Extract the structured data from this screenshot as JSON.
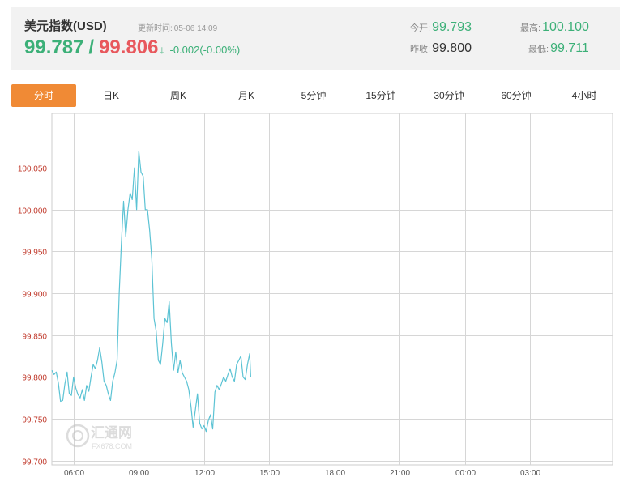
{
  "header": {
    "title": "美元指数(USD)",
    "update_label": "更新时间:",
    "update_time": "05-06 14:09",
    "bid": "99.787",
    "separator": "/",
    "ask": "99.806",
    "arrow": "↓",
    "change": "-0.002(-0.00%)",
    "open_label": "今开:",
    "open_value": "99.793",
    "prev_close_label": "昨收:",
    "prev_close_value": "99.800",
    "high_label": "最高:",
    "high_value": "100.100",
    "low_label": "最低:",
    "low_value": "99.711"
  },
  "tabs": [
    "分时",
    "日K",
    "周K",
    "月K",
    "5分钟",
    "15分钟",
    "30分钟",
    "60分钟",
    "4小时"
  ],
  "active_tab": 0,
  "watermark": {
    "cn": "汇通网",
    "en": "FX678.COM",
    "icon": "huitong-logo-icon"
  },
  "colors": {
    "line": "#5cc3d4",
    "ref_line": "#e07a3a",
    "ytick": "#c0392b",
    "grid": "#d6d6d6",
    "active_tab": "#f08a35",
    "up": "#3cb078",
    "down": "#e8585d"
  },
  "chart_data": {
    "type": "line",
    "title": "",
    "xlabel": "",
    "ylabel": "",
    "x_ticks": [
      "06:00",
      "09:00",
      "12:00",
      "15:00",
      "18:00",
      "21:00",
      "00:00",
      "03:00"
    ],
    "y_ticks": [
      "99.700",
      "99.750",
      "99.800",
      "99.850",
      "99.900",
      "99.950",
      "100.000",
      "100.050"
    ],
    "ylim": [
      99.695,
      100.115
    ],
    "xlim_hours": [
      5.0,
      30.8
    ],
    "reference_line": 99.8,
    "grid": true,
    "series": [
      {
        "x": [
          "05:00",
          "05:06",
          "05:12",
          "05:18",
          "05:24",
          "05:30",
          "05:36",
          "05:42",
          "05:48",
          "05:54",
          "06:00",
          "06:06",
          "06:12",
          "06:18",
          "06:24",
          "06:30",
          "06:36",
          "06:42",
          "06:48",
          "06:54",
          "07:00",
          "07:06",
          "07:12",
          "07:18",
          "07:24",
          "07:30",
          "07:36",
          "07:42",
          "07:48",
          "07:54",
          "08:00",
          "08:06",
          "08:12",
          "08:18",
          "08:24",
          "08:30",
          "08:36",
          "08:42",
          "08:48",
          "08:54",
          "09:00",
          "09:06",
          "09:12",
          "09:18",
          "09:24",
          "09:30",
          "09:36",
          "09:42",
          "09:48",
          "09:54",
          "10:00",
          "10:06",
          "10:12",
          "10:18",
          "10:24",
          "10:30",
          "10:36",
          "10:42",
          "10:48",
          "10:54",
          "11:00",
          "11:06",
          "11:12",
          "11:18",
          "11:24",
          "11:30",
          "11:36",
          "11:42",
          "11:48",
          "11:54",
          "12:00",
          "12:06",
          "12:12",
          "12:18",
          "12:24",
          "12:30",
          "12:36",
          "12:42",
          "12:48",
          "12:54",
          "13:00",
          "13:06",
          "13:12",
          "13:18",
          "13:24",
          "13:30",
          "13:36",
          "13:42",
          "13:48",
          "13:54",
          "14:00",
          "14:06",
          "14:09"
        ],
        "values": [
          99.808,
          99.803,
          99.806,
          99.793,
          99.771,
          99.772,
          99.792,
          99.806,
          99.78,
          99.778,
          99.8,
          99.787,
          99.779,
          99.775,
          99.785,
          99.772,
          99.79,
          99.783,
          99.8,
          99.815,
          99.81,
          99.82,
          99.835,
          99.818,
          99.795,
          99.79,
          99.78,
          99.772,
          99.795,
          99.805,
          99.82,
          99.9,
          99.96,
          100.01,
          99.968,
          100.0,
          100.02,
          100.012,
          100.05,
          100.0,
          100.07,
          100.045,
          100.04,
          100.0,
          100.0,
          99.975,
          99.94,
          99.87,
          99.855,
          99.82,
          99.815,
          99.84,
          99.87,
          99.865,
          99.89,
          99.84,
          99.808,
          99.83,
          99.805,
          99.82,
          99.805,
          99.8,
          99.795,
          99.785,
          99.765,
          99.74,
          99.76,
          99.78,
          99.745,
          99.738,
          99.742,
          99.735,
          99.748,
          99.755,
          99.738,
          99.782,
          99.79,
          99.785,
          99.792,
          99.8,
          99.795,
          99.803,
          99.81,
          99.8,
          99.795,
          99.815,
          99.82,
          99.825,
          99.8,
          99.797,
          99.815,
          99.828,
          99.8
        ]
      }
    ]
  }
}
